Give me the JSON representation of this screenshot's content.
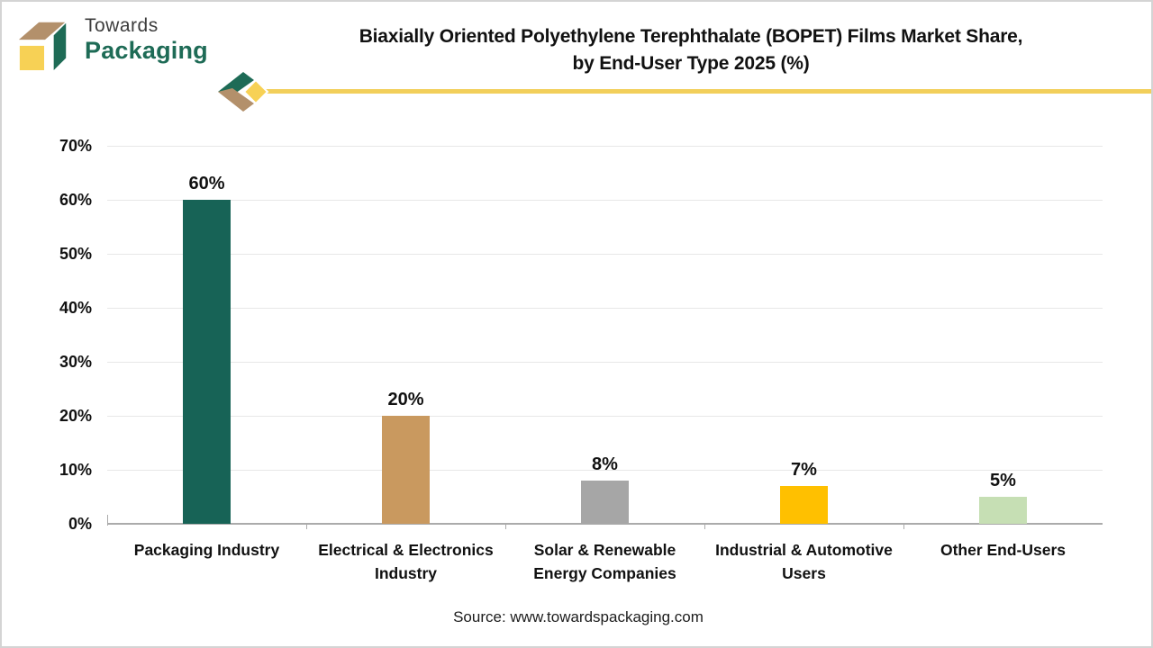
{
  "logo": {
    "word1": "Towards",
    "word2": "Packaging"
  },
  "header": {
    "title_line1": "Biaxially Oriented Polyethylene Terephthalate (BOPET) Films Market Share,",
    "title_line2": "by End-User Type 2025 (%)"
  },
  "footer": {
    "source": "Source: www.towardspackaging.com"
  },
  "brand_colors": {
    "logo_dark_green": "#1E6B56",
    "logo_tan": "#B3906B",
    "logo_yellow": "#F7D155",
    "divider_yellow": "#F2CF5B"
  },
  "chart_data": {
    "type": "bar",
    "title": "Biaxially Oriented Polyethylene Terephthalate (BOPET) Films Market Share, by End-User Type 2025 (%)",
    "categories": [
      "Packaging Industry",
      "Electrical & Electronics Industry",
      "Solar & Renewable Energy Companies",
      "Industrial & Automotive Users",
      "Other End-Users"
    ],
    "category_label_lines": [
      [
        "Packaging Industry"
      ],
      [
        "Electrical & Electronics",
        "Industry"
      ],
      [
        "Solar & Renewable",
        "Energy Companies"
      ],
      [
        "Industrial & Automotive",
        "Users"
      ],
      [
        "Other End-Users"
      ]
    ],
    "values": [
      60,
      20,
      8,
      7,
      5
    ],
    "value_labels": [
      "60%",
      "20%",
      "8%",
      "7%",
      "5%"
    ],
    "bar_colors": [
      "#176356",
      "#C9995F",
      "#A6A6A6",
      "#FFC000",
      "#C6DFB4"
    ],
    "xlabel": "",
    "ylabel": "",
    "ylim": [
      0,
      70
    ],
    "ytick_step": 10,
    "ytick_labels": [
      "0%",
      "10%",
      "20%",
      "30%",
      "40%",
      "50%",
      "60%",
      "70%"
    ],
    "grid": true,
    "legend": false
  }
}
